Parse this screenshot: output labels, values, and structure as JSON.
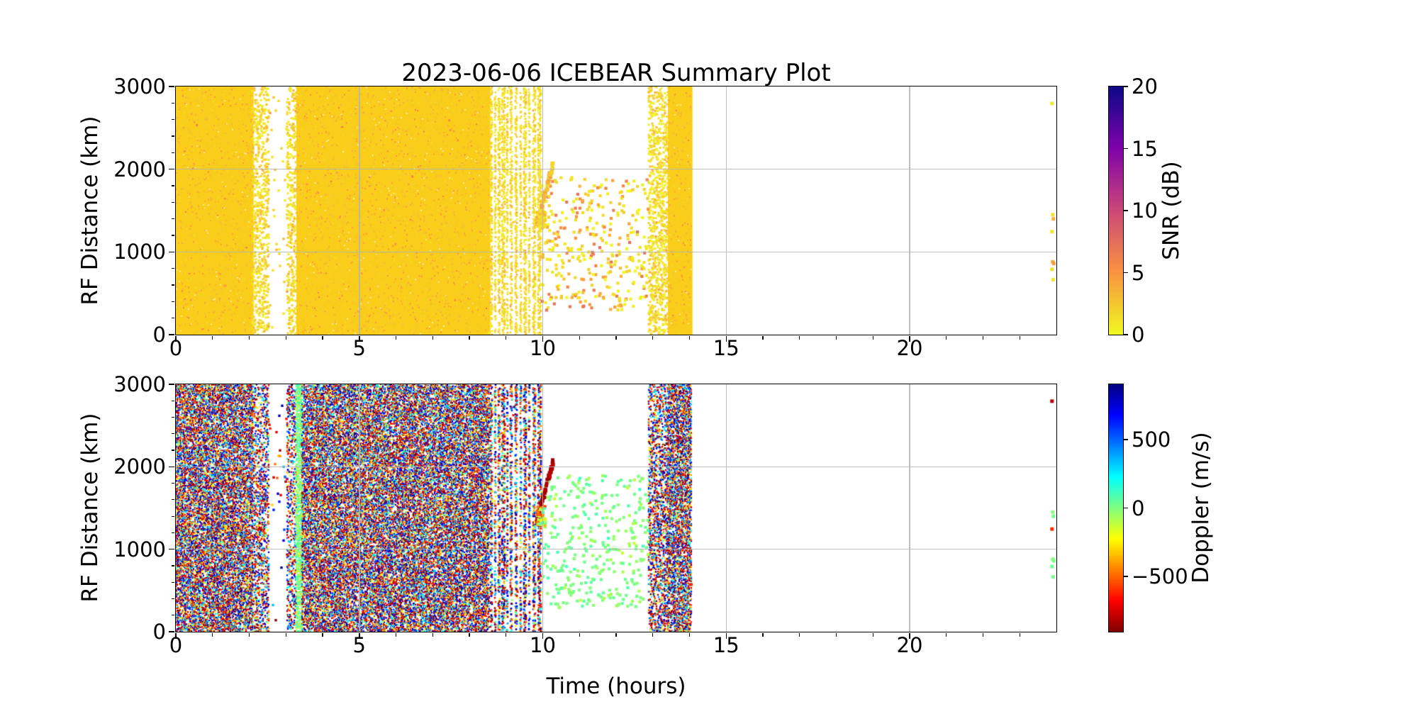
{
  "figure": {
    "title": "2023-06-06 ICEBEAR Summary Plot",
    "xlabel": "Time (hours)",
    "background_color": "#ffffff",
    "grid_color": "#b4b4b4"
  },
  "chart_data": [
    {
      "type": "scatter",
      "panel": "snr",
      "title": "",
      "ylabel": "RF Distance (km)",
      "xlim": [
        0,
        24
      ],
      "ylim": [
        0,
        3000
      ],
      "xticks": [
        0,
        5,
        10,
        15,
        20
      ],
      "xtick_labels": [
        "0",
        "5",
        "10",
        "15",
        "20"
      ],
      "x_minor_step": 1,
      "yticks": [
        0,
        1000,
        2000,
        3000
      ],
      "ytick_labels": [
        "0",
        "1000",
        "2000",
        "3000"
      ],
      "y_minor_step": 200,
      "grid": true,
      "colorbar": {
        "label": "SNR (dB)",
        "lim": [
          0,
          20
        ],
        "tick_values": [
          0,
          5,
          10,
          15,
          20
        ],
        "tick_labels": [
          "0",
          "5",
          "10",
          "15",
          "20"
        ],
        "colormap": "plasma_r"
      },
      "description": "Dense low-SNR (0-5 dB, yellow-orange) echo field from 0 to ~14.1 h"
    },
    {
      "type": "scatter",
      "panel": "doppler",
      "title": "",
      "ylabel": "RF Distance (km)",
      "xlim": [
        0,
        24
      ],
      "ylim": [
        0,
        3000
      ],
      "xticks": [
        0,
        5,
        10,
        15,
        20
      ],
      "xtick_labels": [
        "0",
        "5",
        "10",
        "15",
        "20"
      ],
      "x_minor_step": 1,
      "yticks": [
        0,
        1000,
        2000,
        3000
      ],
      "ytick_labels": [
        "0",
        "1000",
        "2000",
        "3000"
      ],
      "y_minor_step": 200,
      "grid": true,
      "colorbar": {
        "label": "Doppler (m/s)",
        "lim": [
          -903,
          903
        ],
        "tick_values": [
          500,
          0,
          -500
        ],
        "tick_labels": [
          "500",
          "0",
          "−500"
        ],
        "colormap": "jet_r"
      },
      "description": "Noise spans full ±900 m/s (multicolor); coherent echoes near 0 m/s (light green); streak near 10 h at ~-830 m/s (dark red)"
    }
  ],
  "observations": {
    "time_coverage": [
      {
        "t0": 0.0,
        "t1": 2.1,
        "density": "dense",
        "fill": 0.95
      },
      {
        "t0": 2.1,
        "t1": 2.55,
        "density": "medium",
        "fill": 0.5
      },
      {
        "t0": 2.55,
        "t1": 3.05,
        "density": "sparse",
        "fill": 0.08
      },
      {
        "t0": 3.05,
        "t1": 3.3,
        "density": "medium",
        "fill": 0.45
      },
      {
        "t0": 3.3,
        "t1": 3.44,
        "density": "green_column",
        "fill": 0.9
      },
      {
        "t0": 3.44,
        "t1": 8.55,
        "density": "dense",
        "fill": 0.95
      },
      {
        "t0": 8.55,
        "t1": 9.97,
        "density": "striped",
        "fill": 0.5
      },
      {
        "t0": 9.97,
        "t1": 12.9,
        "density": "cloud",
        "fill": 0.03
      },
      {
        "t0": 12.9,
        "t1": 13.42,
        "density": "medium",
        "fill": 0.55
      },
      {
        "t0": 13.42,
        "t1": 14.06,
        "density": "dense",
        "fill": 0.95
      },
      {
        "t0": 14.06,
        "t1": 24.0,
        "density": "empty",
        "fill": 0.0
      }
    ],
    "stripes_dense": [
      [
        8.57,
        8.63
      ],
      [
        8.68,
        8.72
      ],
      [
        8.78,
        8.84
      ],
      [
        8.88,
        8.97
      ],
      [
        9.02,
        9.06
      ],
      [
        9.12,
        9.16
      ],
      [
        9.25,
        9.31
      ],
      [
        9.38,
        9.42
      ],
      [
        9.48,
        9.55
      ],
      [
        9.62,
        9.66
      ],
      [
        9.72,
        9.8
      ],
      [
        9.86,
        9.97
      ]
    ],
    "sparse_cloud": {
      "t_range": [
        9.98,
        12.88
      ],
      "alt_range": [
        290,
        1900
      ],
      "count": 330,
      "snr_range": [
        0.3,
        7.5
      ],
      "doppler_mean": 0,
      "doppler_sd": 60
    },
    "streak": {
      "t_start": 9.84,
      "t_end": 10.28,
      "alt_start": 1340,
      "alt_end": 2060,
      "doppler": -830,
      "snr_range": [
        1.5,
        5
      ]
    },
    "streak_base_cluster": {
      "t_range": [
        9.84,
        10.08
      ],
      "alt_range": [
        1280,
        1520
      ],
      "count": 55,
      "doppler_range": [
        -600,
        150
      ],
      "snr_range": [
        0.5,
        4
      ]
    },
    "green_column": {
      "t_range": [
        3.3,
        3.44
      ],
      "doppler_sd": 110
    },
    "edge_dots": [
      {
        "t": 23.88,
        "alt": 2795,
        "snr": 1.0,
        "doppler": -810
      },
      {
        "t": 23.9,
        "alt": 1450,
        "snr": 1.2,
        "doppler": -15
      },
      {
        "t": 23.92,
        "alt": 1400,
        "snr": 3.8,
        "doppler": 25
      },
      {
        "t": 23.88,
        "alt": 1245,
        "snr": 1.0,
        "doppler": -600
      },
      {
        "t": 23.9,
        "alt": 880,
        "snr": 4.2,
        "doppler": -20
      },
      {
        "t": 23.93,
        "alt": 860,
        "snr": 4.6,
        "doppler": 10
      },
      {
        "t": 23.88,
        "alt": 790,
        "snr": 1.3,
        "doppler": 35
      },
      {
        "t": 23.91,
        "alt": 665,
        "snr": 1.0,
        "doppler": 20
      }
    ]
  }
}
